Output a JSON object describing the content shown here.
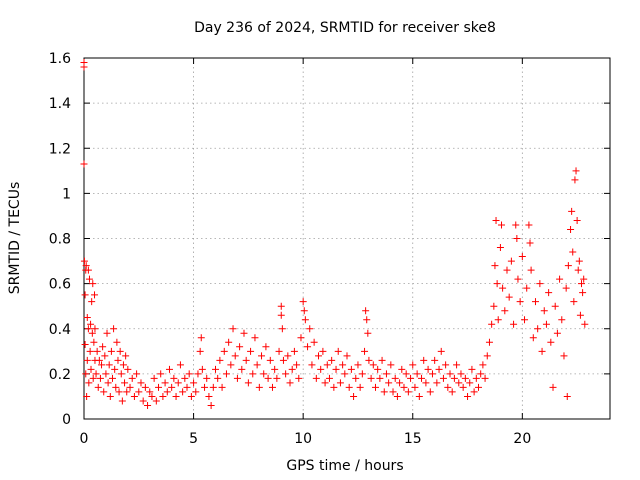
{
  "chart_data": {
    "type": "scatter",
    "title": "Day 236 of 2024, SRMTID for receiver ske8",
    "xlabel": "GPS time / hours",
    "ylabel": "SRMTID / TECUs",
    "xlim": [
      0,
      24
    ],
    "ylim": [
      0,
      1.6
    ],
    "xticks": [
      0,
      5,
      10,
      15,
      20
    ],
    "xtick_labels": [
      "0",
      "5",
      "10",
      "15",
      "20"
    ],
    "yticks": [
      0,
      0.2,
      0.4,
      0.6,
      0.8,
      1.0,
      1.2,
      1.4,
      1.6
    ],
    "ytick_labels": [
      "0",
      "0.2",
      "0.4",
      "0.6",
      "0.8",
      "1",
      "1.2",
      "1.4",
      "1.6"
    ],
    "grid": true,
    "marker": "plus",
    "color": "#ff0000",
    "series": [
      {
        "name": "SRMTID",
        "note": "representative approximation of the dense scatter; [hour, TECU]",
        "points": [
          [
            0.0,
            1.58
          ],
          [
            0.0,
            1.56
          ],
          [
            0.0,
            1.13
          ],
          [
            0.02,
            0.7
          ],
          [
            0.05,
            0.55
          ],
          [
            0.05,
            0.33
          ],
          [
            0.08,
            0.66
          ],
          [
            0.08,
            0.2
          ],
          [
            0.1,
            0.68
          ],
          [
            0.12,
            0.1
          ],
          [
            0.15,
            0.45
          ],
          [
            0.15,
            0.26
          ],
          [
            0.2,
            0.66
          ],
          [
            0.2,
            0.4
          ],
          [
            0.22,
            0.16
          ],
          [
            0.25,
            0.62
          ],
          [
            0.28,
            0.3
          ],
          [
            0.3,
            0.42
          ],
          [
            0.32,
            0.22
          ],
          [
            0.35,
            0.52
          ],
          [
            0.38,
            0.38
          ],
          [
            0.4,
            0.6
          ],
          [
            0.42,
            0.18
          ],
          [
            0.45,
            0.34
          ],
          [
            0.48,
            0.55
          ],
          [
            0.5,
            0.4
          ],
          [
            0.5,
            0.26
          ],
          [
            0.55,
            0.2
          ],
          [
            0.6,
            0.3
          ],
          [
            0.65,
            0.14
          ],
          [
            0.7,
            0.26
          ],
          [
            0.75,
            0.18
          ],
          [
            0.8,
            0.24
          ],
          [
            0.85,
            0.32
          ],
          [
            0.9,
            0.12
          ],
          [
            0.95,
            0.28
          ],
          [
            1.0,
            0.2
          ],
          [
            1.05,
            0.38
          ],
          [
            1.1,
            0.16
          ],
          [
            1.15,
            0.24
          ],
          [
            1.2,
            0.1
          ],
          [
            1.25,
            0.3
          ],
          [
            1.3,
            0.18
          ],
          [
            1.35,
            0.4
          ],
          [
            1.4,
            0.22
          ],
          [
            1.45,
            0.14
          ],
          [
            1.5,
            0.34
          ],
          [
            1.55,
            0.26
          ],
          [
            1.6,
            0.12
          ],
          [
            1.65,
            0.3
          ],
          [
            1.7,
            0.2
          ],
          [
            1.75,
            0.08
          ],
          [
            1.8,
            0.24
          ],
          [
            1.85,
            0.16
          ],
          [
            1.9,
            0.28
          ],
          [
            1.95,
            0.12
          ],
          [
            2.0,
            0.22
          ],
          [
            2.1,
            0.14
          ],
          [
            2.2,
            0.18
          ],
          [
            2.3,
            0.1
          ],
          [
            2.4,
            0.2
          ],
          [
            2.5,
            0.12
          ],
          [
            2.6,
            0.16
          ],
          [
            2.7,
            0.08
          ],
          [
            2.8,
            0.14
          ],
          [
            2.9,
            0.06
          ],
          [
            3.0,
            0.12
          ],
          [
            3.1,
            0.1
          ],
          [
            3.2,
            0.18
          ],
          [
            3.3,
            0.08
          ],
          [
            3.4,
            0.14
          ],
          [
            3.5,
            0.2
          ],
          [
            3.6,
            0.1
          ],
          [
            3.7,
            0.16
          ],
          [
            3.8,
            0.12
          ],
          [
            3.9,
            0.22
          ],
          [
            4.0,
            0.14
          ],
          [
            4.1,
            0.18
          ],
          [
            4.2,
            0.1
          ],
          [
            4.3,
            0.16
          ],
          [
            4.4,
            0.24
          ],
          [
            4.5,
            0.12
          ],
          [
            4.6,
            0.18
          ],
          [
            4.7,
            0.14
          ],
          [
            4.8,
            0.2
          ],
          [
            4.9,
            0.1
          ],
          [
            5.0,
            0.16
          ],
          [
            5.1,
            0.12
          ],
          [
            5.2,
            0.2
          ],
          [
            5.3,
            0.3
          ],
          [
            5.35,
            0.36
          ],
          [
            5.4,
            0.22
          ],
          [
            5.5,
            0.14
          ],
          [
            5.6,
            0.18
          ],
          [
            5.7,
            0.1
          ],
          [
            5.8,
            0.06
          ],
          [
            5.9,
            0.14
          ],
          [
            6.0,
            0.22
          ],
          [
            6.1,
            0.18
          ],
          [
            6.2,
            0.26
          ],
          [
            6.3,
            0.14
          ],
          [
            6.4,
            0.3
          ],
          [
            6.5,
            0.2
          ],
          [
            6.6,
            0.34
          ],
          [
            6.7,
            0.24
          ],
          [
            6.8,
            0.4
          ],
          [
            6.9,
            0.28
          ],
          [
            7.0,
            0.18
          ],
          [
            7.1,
            0.32
          ],
          [
            7.2,
            0.22
          ],
          [
            7.3,
            0.38
          ],
          [
            7.4,
            0.26
          ],
          [
            7.5,
            0.16
          ],
          [
            7.6,
            0.3
          ],
          [
            7.7,
            0.2
          ],
          [
            7.8,
            0.36
          ],
          [
            7.9,
            0.24
          ],
          [
            8.0,
            0.14
          ],
          [
            8.1,
            0.28
          ],
          [
            8.2,
            0.2
          ],
          [
            8.3,
            0.32
          ],
          [
            8.4,
            0.18
          ],
          [
            8.5,
            0.26
          ],
          [
            8.6,
            0.14
          ],
          [
            8.7,
            0.22
          ],
          [
            8.8,
            0.18
          ],
          [
            8.9,
            0.3
          ],
          [
            9.0,
            0.5
          ],
          [
            9.0,
            0.46
          ],
          [
            9.05,
            0.4
          ],
          [
            9.1,
            0.26
          ],
          [
            9.2,
            0.2
          ],
          [
            9.3,
            0.28
          ],
          [
            9.4,
            0.16
          ],
          [
            9.5,
            0.22
          ],
          [
            9.6,
            0.3
          ],
          [
            9.7,
            0.24
          ],
          [
            9.8,
            0.18
          ],
          [
            9.9,
            0.36
          ],
          [
            10.0,
            0.52
          ],
          [
            10.05,
            0.48
          ],
          [
            10.1,
            0.44
          ],
          [
            10.2,
            0.32
          ],
          [
            10.3,
            0.4
          ],
          [
            10.4,
            0.24
          ],
          [
            10.5,
            0.34
          ],
          [
            10.6,
            0.18
          ],
          [
            10.7,
            0.28
          ],
          [
            10.8,
            0.22
          ],
          [
            10.9,
            0.3
          ],
          [
            11.0,
            0.16
          ],
          [
            11.1,
            0.24
          ],
          [
            11.2,
            0.18
          ],
          [
            11.3,
            0.26
          ],
          [
            11.4,
            0.14
          ],
          [
            11.5,
            0.22
          ],
          [
            11.6,
            0.3
          ],
          [
            11.7,
            0.16
          ],
          [
            11.8,
            0.24
          ],
          [
            11.9,
            0.2
          ],
          [
            12.0,
            0.28
          ],
          [
            12.1,
            0.14
          ],
          [
            12.2,
            0.22
          ],
          [
            12.3,
            0.1
          ],
          [
            12.4,
            0.18
          ],
          [
            12.5,
            0.24
          ],
          [
            12.6,
            0.14
          ],
          [
            12.7,
            0.2
          ],
          [
            12.8,
            0.3
          ],
          [
            12.85,
            0.48
          ],
          [
            12.9,
            0.44
          ],
          [
            12.95,
            0.38
          ],
          [
            13.0,
            0.26
          ],
          [
            13.1,
            0.18
          ],
          [
            13.2,
            0.24
          ],
          [
            13.3,
            0.14
          ],
          [
            13.4,
            0.22
          ],
          [
            13.5,
            0.18
          ],
          [
            13.6,
            0.26
          ],
          [
            13.7,
            0.12
          ],
          [
            13.8,
            0.2
          ],
          [
            13.9,
            0.16
          ],
          [
            14.0,
            0.24
          ],
          [
            14.1,
            0.12
          ],
          [
            14.2,
            0.18
          ],
          [
            14.3,
            0.1
          ],
          [
            14.4,
            0.16
          ],
          [
            14.5,
            0.22
          ],
          [
            14.6,
            0.14
          ],
          [
            14.7,
            0.2
          ],
          [
            14.8,
            0.12
          ],
          [
            14.9,
            0.18
          ],
          [
            15.0,
            0.24
          ],
          [
            15.1,
            0.14
          ],
          [
            15.2,
            0.2
          ],
          [
            15.3,
            0.1
          ],
          [
            15.4,
            0.18
          ],
          [
            15.5,
            0.26
          ],
          [
            15.6,
            0.16
          ],
          [
            15.7,
            0.22
          ],
          [
            15.8,
            0.12
          ],
          [
            15.9,
            0.2
          ],
          [
            16.0,
            0.26
          ],
          [
            16.1,
            0.16
          ],
          [
            16.2,
            0.22
          ],
          [
            16.3,
            0.3
          ],
          [
            16.4,
            0.18
          ],
          [
            16.5,
            0.24
          ],
          [
            16.6,
            0.14
          ],
          [
            16.7,
            0.2
          ],
          [
            16.8,
            0.12
          ],
          [
            16.9,
            0.18
          ],
          [
            17.0,
            0.24
          ],
          [
            17.1,
            0.16
          ],
          [
            17.2,
            0.2
          ],
          [
            17.3,
            0.14
          ],
          [
            17.4,
            0.18
          ],
          [
            17.5,
            0.1
          ],
          [
            17.6,
            0.16
          ],
          [
            17.7,
            0.22
          ],
          [
            17.8,
            0.12
          ],
          [
            17.9,
            0.18
          ],
          [
            18.0,
            0.14
          ],
          [
            18.1,
            0.2
          ],
          [
            18.2,
            0.24
          ],
          [
            18.3,
            0.18
          ],
          [
            18.4,
            0.28
          ],
          [
            18.5,
            0.34
          ],
          [
            18.6,
            0.42
          ],
          [
            18.7,
            0.5
          ],
          [
            18.75,
            0.68
          ],
          [
            18.8,
            0.88
          ],
          [
            18.85,
            0.6
          ],
          [
            18.9,
            0.44
          ],
          [
            19.0,
            0.76
          ],
          [
            19.05,
            0.86
          ],
          [
            19.1,
            0.58
          ],
          [
            19.2,
            0.48
          ],
          [
            19.3,
            0.66
          ],
          [
            19.4,
            0.54
          ],
          [
            19.5,
            0.7
          ],
          [
            19.6,
            0.42
          ],
          [
            19.7,
            0.86
          ],
          [
            19.75,
            0.8
          ],
          [
            19.8,
            0.62
          ],
          [
            19.9,
            0.52
          ],
          [
            20.0,
            0.72
          ],
          [
            20.1,
            0.44
          ],
          [
            20.2,
            0.58
          ],
          [
            20.3,
            0.86
          ],
          [
            20.35,
            0.78
          ],
          [
            20.4,
            0.66
          ],
          [
            20.5,
            0.36
          ],
          [
            20.6,
            0.52
          ],
          [
            20.7,
            0.4
          ],
          [
            20.8,
            0.6
          ],
          [
            20.9,
            0.3
          ],
          [
            21.0,
            0.48
          ],
          [
            21.1,
            0.42
          ],
          [
            21.2,
            0.56
          ],
          [
            21.3,
            0.34
          ],
          [
            21.4,
            0.14
          ],
          [
            21.5,
            0.5
          ],
          [
            21.6,
            0.38
          ],
          [
            21.7,
            0.62
          ],
          [
            21.8,
            0.44
          ],
          [
            21.9,
            0.28
          ],
          [
            22.0,
            0.58
          ],
          [
            22.05,
            0.1
          ],
          [
            22.1,
            0.68
          ],
          [
            22.2,
            0.84
          ],
          [
            22.25,
            0.92
          ],
          [
            22.3,
            0.74
          ],
          [
            22.35,
            0.52
          ],
          [
            22.4,
            1.06
          ],
          [
            22.45,
            1.1
          ],
          [
            22.5,
            0.88
          ],
          [
            22.55,
            0.66
          ],
          [
            22.6,
            0.7
          ],
          [
            22.65,
            0.46
          ],
          [
            22.7,
            0.6
          ],
          [
            22.75,
            0.56
          ],
          [
            22.8,
            0.62
          ],
          [
            22.85,
            0.42
          ]
        ]
      }
    ]
  }
}
